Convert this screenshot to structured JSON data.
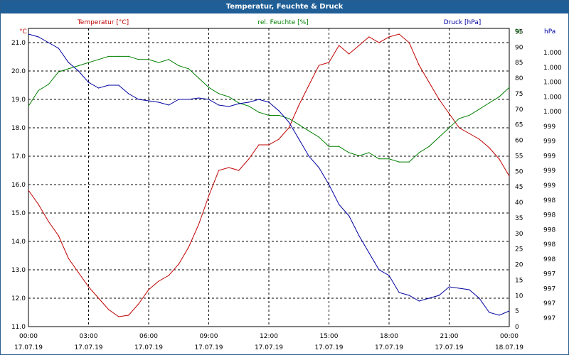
{
  "window": {
    "title": "Temperatur, Feuchte & Druck"
  },
  "colors": {
    "temperature": "#c00000",
    "humidity": "#008000",
    "pressure": "#0000a0",
    "titlebar": "#1f5e96"
  },
  "chart_data": {
    "type": "line",
    "title": "Temperatur, Feuchte & Druck",
    "grid": true,
    "x_ticks": [
      {
        "time": "00:00",
        "date": "17.07.19"
      },
      {
        "time": "03:00",
        "date": "17.07.19"
      },
      {
        "time": "06:00",
        "date": "17.07.19"
      },
      {
        "time": "09:00",
        "date": "17.07.19"
      },
      {
        "time": "12:00",
        "date": "17.07.19"
      },
      {
        "time": "15:00",
        "date": "17.07.19"
      },
      {
        "time": "18:00",
        "date": "17.07.19"
      },
      {
        "time": "21:00",
        "date": "17.07.19"
      },
      {
        "time": "00:00",
        "date": "18.07.19"
      }
    ],
    "x_hours": [
      0,
      24
    ],
    "axes": {
      "temperature": {
        "label": "Temperatur [°C]",
        "unit": "°C",
        "range": [
          11.0,
          21.5
        ],
        "ticks": [
          "11.0",
          "12.0",
          "13.0",
          "14.0",
          "15.0",
          "16.0",
          "17.0",
          "18.0",
          "19.0",
          "20.0",
          "21.0"
        ]
      },
      "humidity": {
        "label": "rel. Feuchte [%]",
        "unit": "%",
        "range": [
          0,
          96
        ],
        "ticks": [
          "0",
          "5",
          "10",
          "15",
          "20",
          "25",
          "30",
          "35",
          "40",
          "45",
          "50",
          "55",
          "60",
          "65",
          "70",
          "75",
          "80",
          "85",
          "90",
          "95"
        ]
      },
      "pressure": {
        "label": "Druck [hPa]",
        "unit": "hPa",
        "ticks": [
          "997",
          "997",
          "997",
          "997",
          "998",
          "998",
          "998",
          "998",
          "998",
          "999",
          "999",
          "999",
          "999",
          "999",
          "1.000",
          "1.000",
          "1.000",
          "1.000",
          "1.000"
        ]
      }
    },
    "series": [
      {
        "name": "Temperatur [°C]",
        "axis": "temperature",
        "color": "#c00000",
        "x": [
          0,
          0.5,
          1,
          1.5,
          2,
          2.5,
          3,
          3.5,
          4,
          4.5,
          5,
          5.5,
          6,
          6.5,
          7,
          7.5,
          8,
          8.5,
          9,
          9.5,
          10,
          10.5,
          11,
          11.5,
          12,
          12.5,
          13,
          13.5,
          14,
          14.5,
          15,
          15.5,
          16,
          16.5,
          17,
          17.5,
          18,
          18.5,
          19,
          19.5,
          20,
          20.5,
          21,
          21.5,
          22,
          22.5,
          23,
          23.5,
          24
        ],
        "values": [
          15.8,
          15.3,
          14.7,
          14.2,
          13.4,
          12.9,
          12.4,
          12.0,
          11.6,
          11.35,
          11.4,
          11.8,
          12.3,
          12.6,
          12.8,
          13.2,
          13.8,
          14.6,
          15.6,
          16.5,
          16.6,
          16.5,
          16.9,
          17.4,
          17.4,
          17.6,
          18.0,
          18.8,
          19.5,
          20.2,
          20.3,
          20.9,
          20.6,
          20.9,
          21.2,
          21.0,
          21.2,
          21.3,
          21.0,
          20.2,
          19.6,
          19.0,
          18.5,
          18.0,
          17.8,
          17.6,
          17.3,
          16.9,
          16.3
        ]
      },
      {
        "name": "rel. Feuchte [%]",
        "axis": "humidity",
        "color": "#008000",
        "x": [
          0,
          0.5,
          1,
          1.5,
          2,
          2.5,
          3,
          3.5,
          4,
          4.5,
          5,
          5.5,
          6,
          6.5,
          7,
          7.5,
          8,
          8.5,
          9,
          9.5,
          10,
          10.5,
          11,
          11.5,
          12,
          12.5,
          13,
          13.5,
          14,
          14.5,
          15,
          15.5,
          16,
          16.5,
          17,
          17.5,
          18,
          18.5,
          19,
          19.5,
          20,
          20.5,
          21,
          21.5,
          22,
          22.5,
          23,
          23.5,
          24
        ],
        "values": [
          71,
          76,
          78,
          82,
          83,
          84,
          85,
          86,
          87,
          87,
          87,
          86,
          86,
          85,
          86,
          84,
          83,
          80,
          77,
          75,
          74,
          72,
          71,
          69,
          68,
          68,
          67,
          65,
          63,
          61,
          58,
          58,
          56,
          55,
          56,
          54,
          54,
          53,
          53,
          56,
          58,
          61,
          64,
          67,
          68,
          70,
          72,
          74,
          77
        ]
      },
      {
        "name": "Druck [hPa]",
        "axis": "pressure",
        "color": "#0000a0",
        "x": [
          0,
          0.5,
          1,
          1.5,
          2,
          2.5,
          3,
          3.5,
          4,
          4.5,
          5,
          5.5,
          6,
          6.5,
          7,
          7.5,
          8,
          8.5,
          9,
          9.5,
          10,
          10.5,
          11,
          11.5,
          12,
          12.5,
          13,
          13.5,
          14,
          14.5,
          15,
          15.5,
          16,
          16.5,
          17,
          17.5,
          18,
          18.5,
          19,
          19.5,
          20,
          20.5,
          21,
          21.5,
          22,
          22.5,
          23,
          23.5,
          24
        ],
        "y_scaled": [
          21.3,
          21.2,
          21.0,
          20.8,
          20.3,
          20.0,
          19.6,
          19.4,
          19.5,
          19.5,
          19.2,
          19.0,
          18.95,
          18.9,
          18.8,
          19.0,
          19.0,
          19.05,
          19.0,
          18.8,
          18.75,
          18.85,
          18.9,
          19.0,
          18.9,
          18.6,
          18.2,
          17.6,
          17.0,
          16.6,
          16.0,
          15.3,
          14.9,
          14.2,
          13.6,
          13.0,
          12.8,
          12.2,
          12.1,
          11.9,
          12.0,
          12.1,
          12.4,
          12.35,
          12.3,
          12.0,
          11.5,
          11.4,
          11.55
        ]
      }
    ]
  }
}
